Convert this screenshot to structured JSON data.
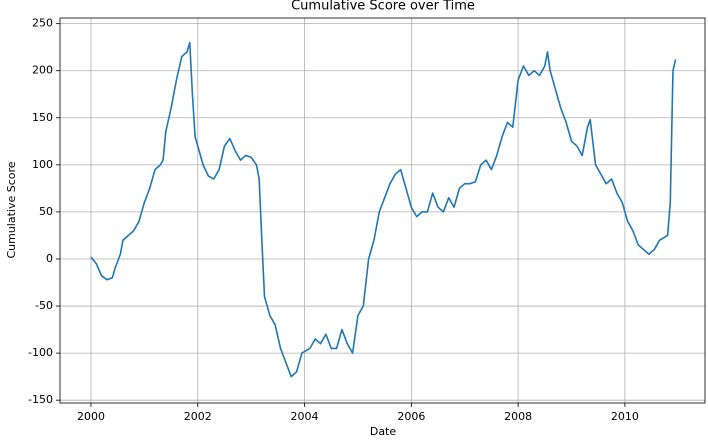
{
  "chart_data": {
    "type": "line",
    "title": "Cumulative Score over Time",
    "xlabel": "Date",
    "ylabel": "Cumulative Score",
    "color": "#1f77b4",
    "grid": true,
    "xlim": [
      1999.42,
      2011.5
    ],
    "xticks": [
      2000,
      2002,
      2004,
      2006,
      2008,
      2010
    ],
    "ylim": [
      -153,
      256
    ],
    "yticks": [
      -150,
      -100,
      -50,
      0,
      50,
      100,
      150,
      200,
      250
    ],
    "x": [
      2000.0,
      2000.1,
      2000.2,
      2000.3,
      2000.4,
      2000.45,
      2000.55,
      2000.6,
      2000.7,
      2000.8,
      2000.9,
      2001.0,
      2001.1,
      2001.2,
      2001.3,
      2001.35,
      2001.4,
      2001.5,
      2001.6,
      2001.7,
      2001.8,
      2001.85,
      2001.9,
      2001.95,
      2002.0,
      2002.1,
      2002.2,
      2002.3,
      2002.4,
      2002.5,
      2002.6,
      2002.7,
      2002.8,
      2002.9,
      2003.0,
      2003.1,
      2003.15,
      2003.2,
      2003.25,
      2003.35,
      2003.45,
      2003.55,
      2003.65,
      2003.75,
      2003.85,
      2003.95,
      2004.1,
      2004.2,
      2004.3,
      2004.4,
      2004.5,
      2004.6,
      2004.7,
      2004.8,
      2004.9,
      2005.0,
      2005.1,
      2005.2,
      2005.3,
      2005.4,
      2005.5,
      2005.6,
      2005.7,
      2005.8,
      2005.9,
      2006.0,
      2006.1,
      2006.2,
      2006.3,
      2006.4,
      2006.5,
      2006.6,
      2006.7,
      2006.8,
      2006.9,
      2007.0,
      2007.1,
      2007.2,
      2007.3,
      2007.4,
      2007.5,
      2007.6,
      2007.7,
      2007.8,
      2007.9,
      2008.0,
      2008.1,
      2008.2,
      2008.3,
      2008.4,
      2008.5,
      2008.55,
      2008.6,
      2008.7,
      2008.8,
      2008.9,
      2009.0,
      2009.1,
      2009.2,
      2009.3,
      2009.35,
      2009.45,
      2009.55,
      2009.65,
      2009.75,
      2009.85,
      2009.95,
      2010.05,
      2010.15,
      2010.25,
      2010.35,
      2010.45,
      2010.55,
      2010.65,
      2010.8,
      2010.85,
      2010.9,
      2010.95
    ],
    "values": [
      2,
      -5,
      -18,
      -22,
      -20,
      -10,
      5,
      20,
      25,
      30,
      40,
      60,
      75,
      95,
      100,
      105,
      135,
      160,
      190,
      215,
      220,
      230,
      175,
      130,
      120,
      100,
      88,
      85,
      95,
      120,
      128,
      115,
      105,
      110,
      108,
      100,
      85,
      20,
      -40,
      -60,
      -70,
      -95,
      -110,
      -125,
      -120,
      -100,
      -95,
      -85,
      -90,
      -80,
      -95,
      -95,
      -75,
      -90,
      -100,
      -60,
      -50,
      0,
      20,
      50,
      65,
      80,
      90,
      95,
      75,
      55,
      45,
      50,
      50,
      70,
      55,
      50,
      65,
      55,
      75,
      80,
      80,
      82,
      100,
      105,
      95,
      110,
      130,
      145,
      140,
      190,
      205,
      195,
      200,
      195,
      205,
      220,
      200,
      180,
      160,
      145,
      125,
      120,
      110,
      140,
      148,
      100,
      90,
      80,
      85,
      70,
      60,
      40,
      30,
      15,
      10,
      5,
      10,
      20,
      25,
      60,
      200,
      212
    ]
  }
}
